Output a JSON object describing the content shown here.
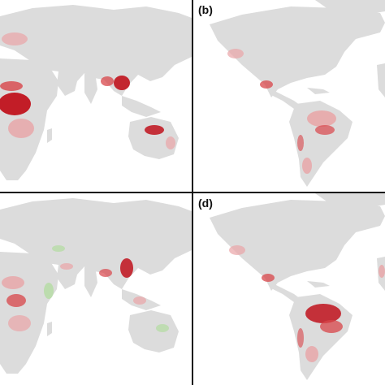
{
  "panels": [
    {
      "id": "a",
      "label": ""
    },
    {
      "id": "b",
      "label": "(b)"
    },
    {
      "id": "c",
      "label": ""
    },
    {
      "id": "d",
      "label": "(d)"
    }
  ],
  "colors": {
    "land": "#dcdcdc",
    "ocean": "#ffffff",
    "hotspot_dark": "#c0121c",
    "hotspot_mid": "#d8454a",
    "hotspot_light": "#e9a4a6",
    "decrease_green": "#b8dca8",
    "divider": "#111111"
  }
}
